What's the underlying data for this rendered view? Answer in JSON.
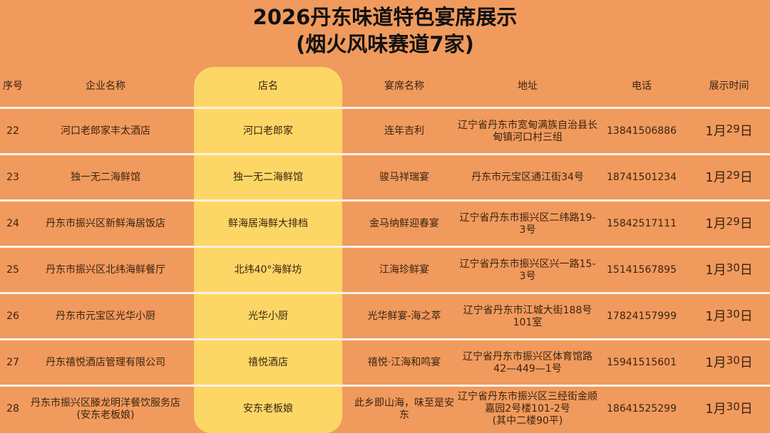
{
  "title": "2026丹东味道特色宴席展示",
  "subtitle": "(烟火风味赛道7家)",
  "colors": {
    "background": "#f19a5d",
    "highlight_column": "#fdd766",
    "separator": "#fbf1e6"
  },
  "headers": [
    "序号",
    "企业名称",
    "店名",
    "宴席名称",
    "地址",
    "电话",
    "展示时间"
  ],
  "rows": [
    {
      "no": "22",
      "company": "河口老郎家丰太酒店",
      "store": "河口老郎家",
      "banquet": "连年吉利",
      "address": "辽宁省丹东市宽甸满族自治县长甸镇河口村三组",
      "phone": "13841506886",
      "month": "1月",
      "day": "29",
      "day_unit": "日"
    },
    {
      "no": "23",
      "company": "独一无二海鲜馆",
      "store": "独一无二海鲜馆",
      "banquet": "骏马祥瑞宴",
      "address": "丹东市元宝区通江街34号",
      "phone": "18741501234",
      "month": "1月",
      "day": "29",
      "day_unit": "日"
    },
    {
      "no": "24",
      "company": "丹东市振兴区新鲜海居饭店",
      "store": "鲜海居海鲜大排档",
      "banquet": "金马纳鲜迎春宴",
      "address": "辽宁省丹东市振兴区二纬路19-3号",
      "phone": "15842517111",
      "month": "1月",
      "day": "29",
      "day_unit": "日"
    },
    {
      "no": "25",
      "company": "丹东市振兴区北纬海鲜餐厅",
      "store": "北纬40°海鲜坊",
      "banquet": "江海珍鲜宴",
      "address": "辽宁省丹东市振兴区兴一路15-3号",
      "phone": "15141567895",
      "month": "1月",
      "day": "30",
      "day_unit": "日"
    },
    {
      "no": "26",
      "company": "丹东市元宝区光华小厨",
      "store": "光华小厨",
      "banquet": "光华鲜宴-海之萃",
      "address": "辽宁省丹东市江城大街188号101室",
      "phone": "17824157999",
      "month": "1月",
      "day": "30",
      "day_unit": "日"
    },
    {
      "no": "27",
      "company": "丹东禧悦酒店管理有限公司",
      "store": "禧悦酒店",
      "banquet": "禧悦·江海和鸣宴",
      "address": "辽宁省丹东市振兴区体育馆路42—449—1号",
      "phone": "15941515601",
      "month": "1月",
      "day": "30",
      "day_unit": "日"
    },
    {
      "no": "28",
      "company": "丹东市振兴区滕龙明洋餐饮服务店\n(安东老板娘)",
      "store": "安东老板娘",
      "banquet": "此乡即山海，味至是安东",
      "address": "辽宁省丹东市振兴区三经街金顺嘉园2号楼101-2号\n(其中二楼90平)",
      "phone": "18641525299",
      "month": "1月",
      "day": "30",
      "day_unit": "日"
    }
  ]
}
